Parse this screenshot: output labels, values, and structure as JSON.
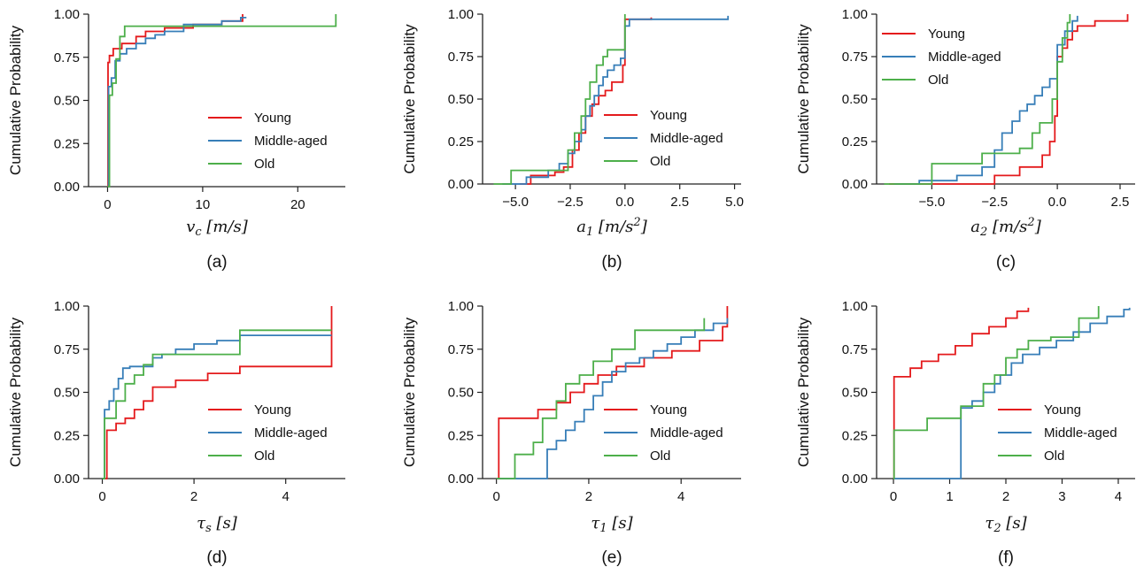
{
  "colors": {
    "Young": "#e41a1c",
    "Middle-aged": "#377eb8",
    "Old": "#4daf4a"
  },
  "chart_data": [
    {
      "type": "line",
      "step": true,
      "panel_label": "(a)",
      "xlabel": "v_c [m/s]",
      "ylabel": "Cumulative Probability",
      "xlim": [
        -2,
        25
      ],
      "ylim": [
        0,
        1.0
      ],
      "xticks": [
        0,
        10,
        20
      ],
      "xticklabels": [
        "0",
        "10",
        "20"
      ],
      "yticks": [
        0,
        0.25,
        0.5,
        0.75,
        1.0
      ],
      "yticklabels": [
        "0.00",
        "0.25",
        "0.50",
        "0.75",
        "1.00"
      ],
      "legend": "lower-right",
      "series": [
        {
          "name": "Young",
          "x": [
            0,
            0.05,
            0.2,
            0.6,
            1.5,
            3,
            4,
            6,
            9,
            12,
            14.2,
            14.2
          ],
          "y": [
            0,
            0.72,
            0.76,
            0.8,
            0.83,
            0.87,
            0.9,
            0.92,
            0.94,
            0.96,
            0.96,
            1.0
          ]
        },
        {
          "name": "Middle-aged",
          "x": [
            0,
            0.1,
            0.4,
            0.8,
            1.3,
            2,
            3,
            4,
            5,
            6,
            8,
            12,
            14,
            14.6
          ],
          "y": [
            0,
            0.58,
            0.63,
            0.73,
            0.77,
            0.8,
            0.83,
            0.86,
            0.88,
            0.9,
            0.94,
            0.96,
            0.98,
            0.98
          ]
        },
        {
          "name": "Old",
          "x": [
            0,
            0.2,
            0.5,
            0.9,
            1.3,
            1.8,
            24,
            24
          ],
          "y": [
            0,
            0.53,
            0.6,
            0.74,
            0.87,
            0.93,
            0.93,
            1.0
          ]
        }
      ]
    },
    {
      "type": "line",
      "step": true,
      "panel_label": "(b)",
      "xlabel": "a_1 [m/s^2]",
      "ylabel": "Cumulative Probability",
      "xlim": [
        -6.5,
        5.3
      ],
      "ylim": [
        0,
        1.0
      ],
      "xticks": [
        -5,
        -2.5,
        0,
        2.5,
        5
      ],
      "xticklabels": [
        "−5.0",
        "−2.5",
        "0.0",
        "2.5",
        "5.0"
      ],
      "yticks": [
        0,
        0.25,
        0.5,
        0.75,
        1.0
      ],
      "yticklabels": [
        "0.00",
        "0.25",
        "0.50",
        "0.75",
        "1.00"
      ],
      "legend": "lower-right",
      "series": [
        {
          "name": "Young",
          "x": [
            -4.8,
            -4.3,
            -3.2,
            -2.8,
            -2.4,
            -2.1,
            -1.8,
            -1.5,
            -1.2,
            -0.9,
            -0.6,
            -0.1,
            0,
            1.2
          ],
          "y": [
            0,
            0.05,
            0.07,
            0.1,
            0.2,
            0.3,
            0.4,
            0.47,
            0.52,
            0.55,
            0.6,
            0.7,
            0.97,
            0.98
          ]
        },
        {
          "name": "Middle-aged",
          "x": [
            -5.6,
            -4.5,
            -3.5,
            -3,
            -2.6,
            -2.3,
            -2.0,
            -1.8,
            -1.6,
            -1.4,
            -1.2,
            -1.0,
            -0.8,
            -0.5,
            -0.2,
            0,
            0.2,
            4.7,
            4.7
          ],
          "y": [
            0,
            0.04,
            0.08,
            0.12,
            0.18,
            0.25,
            0.32,
            0.4,
            0.46,
            0.52,
            0.58,
            0.63,
            0.67,
            0.7,
            0.74,
            0.93,
            0.97,
            0.97,
            0.99
          ]
        },
        {
          "name": "Old",
          "x": [
            -6,
            -5.2,
            -3.5,
            -2.6,
            -2.3,
            -2.0,
            -1.8,
            -1.6,
            -1.3,
            -1.0,
            -0.8,
            -0.6,
            0,
            0
          ],
          "y": [
            0,
            0.08,
            0.08,
            0.2,
            0.3,
            0.4,
            0.5,
            0.6,
            0.7,
            0.75,
            0.79,
            0.79,
            0.79,
            1.0
          ]
        }
      ]
    },
    {
      "type": "line",
      "step": true,
      "panel_label": "(c)",
      "xlabel": "a_2 [m/s^2]",
      "ylabel": "Cumulative Probability",
      "xlim": [
        -7.2,
        3.1
      ],
      "ylim": [
        0,
        1.0
      ],
      "xticks": [
        -5,
        -2.5,
        0,
        2.5
      ],
      "xticklabels": [
        "−5.0",
        "−2.5",
        "0.0",
        "2.5"
      ],
      "yticks": [
        0,
        0.25,
        0.5,
        0.75,
        1.0
      ],
      "yticklabels": [
        "0.00",
        "0.25",
        "0.50",
        "0.75",
        "1.00"
      ],
      "legend": "upper-left",
      "series": [
        {
          "name": "Young",
          "x": [
            -6.7,
            -2.5,
            -1.5,
            -0.6,
            -0.3,
            -0.1,
            0,
            0.2,
            0.4,
            0.6,
            0.8,
            1.5,
            2.8,
            2.8
          ],
          "y": [
            0,
            0.05,
            0.1,
            0.17,
            0.25,
            0.4,
            0.75,
            0.8,
            0.85,
            0.9,
            0.93,
            0.96,
            0.96,
            1.0
          ]
        },
        {
          "name": "Middle-aged",
          "x": [
            -6.5,
            -5.5,
            -4.0,
            -3.0,
            -2.5,
            -2.2,
            -1.8,
            -1.5,
            -1.2,
            -0.9,
            -0.6,
            -0.3,
            0,
            0.3,
            0.6,
            0.8
          ],
          "y": [
            0,
            0.02,
            0.05,
            0.1,
            0.2,
            0.3,
            0.37,
            0.43,
            0.47,
            0.52,
            0.57,
            0.62,
            0.82,
            0.9,
            0.96,
            0.99
          ]
        },
        {
          "name": "Old",
          "x": [
            -6.9,
            -5.0,
            -3.0,
            -1.5,
            -1.0,
            -0.7,
            -0.2,
            0,
            0.2,
            0.4,
            0.5
          ],
          "y": [
            0,
            0.12,
            0.18,
            0.21,
            0.3,
            0.36,
            0.5,
            0.72,
            0.86,
            0.95,
            1.0
          ]
        }
      ]
    },
    {
      "type": "line",
      "step": true,
      "panel_label": "(d)",
      "xlabel": "τ_s [s]",
      "ylabel": "Cumulative Probability",
      "xlim": [
        -0.3,
        5.3
      ],
      "ylim": [
        0,
        1.0
      ],
      "xticks": [
        0,
        2,
        4
      ],
      "xticklabels": [
        "0",
        "2",
        "4"
      ],
      "yticks": [
        0,
        0.25,
        0.5,
        0.75,
        1.0
      ],
      "yticklabels": [
        "0.00",
        "0.25",
        "0.50",
        "0.75",
        "1.00"
      ],
      "legend": "lower-right",
      "series": [
        {
          "name": "Young",
          "x": [
            0,
            0.1,
            0.3,
            0.5,
            0.7,
            0.9,
            1.1,
            1.6,
            2.3,
            3.0,
            5,
            5
          ],
          "y": [
            0,
            0.28,
            0.32,
            0.35,
            0.4,
            0.45,
            0.53,
            0.57,
            0.61,
            0.65,
            0.65,
            1.0
          ]
        },
        {
          "name": "Middle-aged",
          "x": [
            0,
            0.05,
            0.15,
            0.25,
            0.35,
            0.45,
            0.6,
            0.9,
            1.1,
            1.3,
            1.6,
            2.0,
            2.5,
            3.0,
            5
          ],
          "y": [
            0,
            0.4,
            0.45,
            0.52,
            0.58,
            0.64,
            0.65,
            0.65,
            0.7,
            0.72,
            0.75,
            0.78,
            0.8,
            0.83,
            0.83
          ]
        },
        {
          "name": "Old",
          "x": [
            0,
            0.05,
            0.3,
            0.5,
            0.7,
            0.9,
            1.1,
            3.0,
            5
          ],
          "y": [
            0,
            0.35,
            0.45,
            0.55,
            0.6,
            0.66,
            0.72,
            0.86,
            0.86
          ]
        }
      ]
    },
    {
      "type": "line",
      "step": true,
      "panel_label": "(e)",
      "xlabel": "τ_1 [s]",
      "ylabel": "Cumulative Probability",
      "xlim": [
        -0.3,
        5.3
      ],
      "ylim": [
        0,
        1.0
      ],
      "xticks": [
        0,
        2,
        4
      ],
      "xticklabels": [
        "0",
        "2",
        "4"
      ],
      "yticks": [
        0,
        0.25,
        0.5,
        0.75,
        1.0
      ],
      "yticklabels": [
        "0.00",
        "0.25",
        "0.50",
        "0.75",
        "1.00"
      ],
      "legend": "lower-right",
      "series": [
        {
          "name": "Young",
          "x": [
            0,
            0.05,
            0.9,
            1.3,
            1.6,
            1.9,
            2.2,
            2.6,
            3.2,
            3.8,
            4.4,
            4.9,
            5,
            5
          ],
          "y": [
            0,
            0.35,
            0.4,
            0.44,
            0.5,
            0.55,
            0.6,
            0.65,
            0.7,
            0.74,
            0.8,
            0.88,
            0.88,
            1.0
          ]
        },
        {
          "name": "Middle-aged",
          "x": [
            0,
            1.1,
            1.3,
            1.5,
            1.7,
            1.9,
            2.1,
            2.3,
            2.5,
            2.8,
            3.1,
            3.4,
            3.7,
            4.0,
            4.3,
            4.7,
            5
          ],
          "y": [
            0,
            0.17,
            0.22,
            0.28,
            0.33,
            0.4,
            0.48,
            0.56,
            0.62,
            0.67,
            0.7,
            0.74,
            0.78,
            0.82,
            0.86,
            0.9,
            0.93
          ]
        },
        {
          "name": "Old",
          "x": [
            0,
            0.4,
            0.8,
            1.0,
            1.3,
            1.5,
            1.8,
            2.1,
            2.5,
            3.0,
            3.5,
            4.5
          ],
          "y": [
            0,
            0.14,
            0.21,
            0.35,
            0.45,
            0.55,
            0.6,
            0.68,
            0.75,
            0.86,
            0.86,
            0.93
          ]
        }
      ]
    },
    {
      "type": "line",
      "step": true,
      "panel_label": "(f)",
      "xlabel": "τ_2 [s]",
      "ylabel": "Cumulative Probability",
      "xlim": [
        -0.3,
        4.3
      ],
      "ylim": [
        0,
        1.0
      ],
      "xticks": [
        0,
        1,
        2,
        3,
        4
      ],
      "xticklabels": [
        "0",
        "1",
        "2",
        "3",
        "4"
      ],
      "yticks": [
        0,
        0.25,
        0.5,
        0.75,
        1.0
      ],
      "yticklabels": [
        "0.00",
        "0.25",
        "0.50",
        "0.75",
        "1.00"
      ],
      "legend": "lower-right",
      "series": [
        {
          "name": "Young",
          "x": [
            0,
            0.01,
            0.3,
            0.5,
            0.8,
            1.1,
            1.4,
            1.7,
            2.0,
            2.2,
            2.4
          ],
          "y": [
            0,
            0.59,
            0.64,
            0.68,
            0.72,
            0.77,
            0.84,
            0.88,
            0.93,
            0.97,
            0.99
          ]
        },
        {
          "name": "Middle-aged",
          "x": [
            0,
            1.2,
            1.4,
            1.6,
            1.8,
            1.9,
            2.1,
            2.3,
            2.6,
            2.9,
            3.2,
            3.5,
            3.8,
            4.1,
            4.2
          ],
          "y": [
            0,
            0.41,
            0.45,
            0.5,
            0.55,
            0.6,
            0.67,
            0.72,
            0.76,
            0.8,
            0.85,
            0.9,
            0.94,
            0.98,
            0.99
          ]
        },
        {
          "name": "Old",
          "x": [
            0,
            0.01,
            0.6,
            1.2,
            1.6,
            1.8,
            2.0,
            2.2,
            2.4,
            2.8,
            3.3,
            3.65,
            3.65
          ],
          "y": [
            0,
            0.28,
            0.35,
            0.42,
            0.55,
            0.6,
            0.7,
            0.75,
            0.8,
            0.82,
            0.93,
            0.93,
            1.0
          ]
        }
      ]
    }
  ]
}
